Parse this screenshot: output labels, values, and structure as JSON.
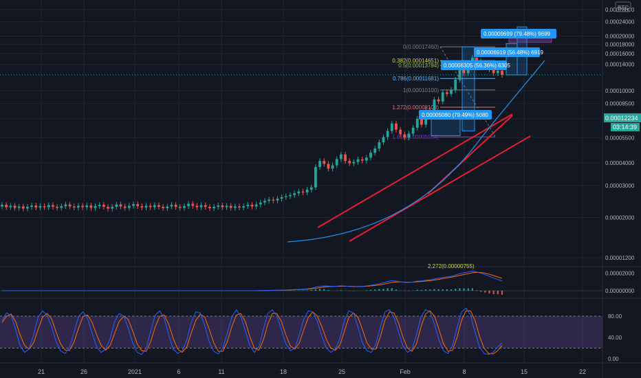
{
  "header": {
    "currency_badge": "BTC",
    "current_price": "0.00012234",
    "countdown": "03:14:39"
  },
  "colors": {
    "background": "#131722",
    "grid": "#1f2430",
    "axis_text": "#b2b5be",
    "up": "#26a69a",
    "down": "#ef5350",
    "trendline": "#e91e30",
    "curve": "#2196f3",
    "macd_line": "#2962ff",
    "signal_line": "#ff6d00",
    "stoch_k": "#2962ff",
    "stoch_d": "#ff6d00",
    "stoch_band": "#7e57c2",
    "label_blue": "#2196f3"
  },
  "chart_data": [
    {
      "type": "candlestick",
      "panel": "price",
      "scale": "log",
      "y_ticks": [
        "0.00028000",
        "0.00024000",
        "0.00020000",
        "0.00018000",
        "0.00016000",
        "0.00014000",
        "0.00010000",
        "0.00008500",
        "0.00007000",
        "0.00005500",
        "0.00004000",
        "0.00003000",
        "0.00002000",
        "0.00001200"
      ],
      "x_ticks": [
        "21",
        "26",
        "2021",
        "6",
        "11",
        "18",
        "25",
        "Feb",
        "8",
        "15",
        "22"
      ],
      "ylim": [
        1.15e-05,
        0.00029
      ],
      "candles": [
        [
          2.3e-05,
          2.35e-05
        ],
        [
          2.35e-05,
          2.28e-05
        ],
        [
          2.28e-05,
          2.32e-05
        ],
        [
          2.32e-05,
          2.26e-05
        ],
        [
          2.26e-05,
          2.3e-05
        ],
        [
          2.3e-05,
          2.24e-05
        ],
        [
          2.24e-05,
          2.29e-05
        ],
        [
          2.29e-05,
          2.33e-05
        ],
        [
          2.33e-05,
          2.27e-05
        ],
        [
          2.27e-05,
          2.31e-05
        ],
        [
          2.31e-05,
          2.28e-05
        ],
        [
          2.28e-05,
          2.34e-05
        ],
        [
          2.34e-05,
          2.29e-05
        ],
        [
          2.29e-05,
          2.26e-05
        ],
        [
          2.26e-05,
          2.31e-05
        ],
        [
          2.31e-05,
          2.36e-05
        ],
        [
          2.36e-05,
          2.3e-05
        ],
        [
          2.3e-05,
          2.27e-05
        ],
        [
          2.27e-05,
          2.32e-05
        ],
        [
          2.32e-05,
          2.28e-05
        ],
        [
          2.28e-05,
          2.33e-05
        ],
        [
          2.33e-05,
          2.26e-05
        ],
        [
          2.26e-05,
          2.31e-05
        ],
        [
          2.31e-05,
          2.35e-05
        ],
        [
          2.35e-05,
          2.29e-05
        ],
        [
          2.29e-05,
          2.24e-05
        ],
        [
          2.24e-05,
          2.29e-05
        ],
        [
          2.29e-05,
          2.36e-05
        ],
        [
          2.36e-05,
          2.3e-05
        ],
        [
          2.3e-05,
          2.26e-05
        ],
        [
          2.26e-05,
          2.32e-05
        ],
        [
          2.32e-05,
          2.37e-05
        ],
        [
          2.37e-05,
          2.31e-05
        ],
        [
          2.31e-05,
          2.27e-05
        ],
        [
          2.27e-05,
          2.32e-05
        ],
        [
          2.32e-05,
          2.28e-05
        ],
        [
          2.28e-05,
          2.34e-05
        ],
        [
          2.34e-05,
          2.29e-05
        ],
        [
          2.29e-05,
          2.25e-05
        ],
        [
          2.25e-05,
          2.3e-05
        ],
        [
          2.3e-05,
          2.35e-05
        ],
        [
          2.35e-05,
          2.29e-05
        ],
        [
          2.29e-05,
          2.26e-05
        ],
        [
          2.26e-05,
          2.31e-05
        ],
        [
          2.31e-05,
          2.38e-05
        ],
        [
          2.38e-05,
          2.32e-05
        ],
        [
          2.32e-05,
          2.28e-05
        ],
        [
          2.28e-05,
          2.34e-05
        ],
        [
          2.34e-05,
          2.29e-05
        ],
        [
          2.29e-05,
          2.25e-05
        ],
        [
          2.25e-05,
          2.29e-05
        ],
        [
          2.29e-05,
          2.33e-05
        ],
        [
          2.33e-05,
          2.28e-05
        ],
        [
          2.28e-05,
          2.32e-05
        ],
        [
          2.32e-05,
          2.26e-05
        ],
        [
          2.26e-05,
          2.3e-05
        ],
        [
          2.3e-05,
          2.27e-05
        ],
        [
          2.27e-05,
          2.31e-05
        ],
        [
          2.31e-05,
          2.35e-05
        ],
        [
          2.35e-05,
          2.3e-05
        ],
        [
          2.3e-05,
          2.36e-05
        ],
        [
          2.36e-05,
          2.42e-05
        ],
        [
          2.42e-05,
          2.47e-05
        ],
        [
          2.47e-05,
          2.51e-05
        ],
        [
          2.51e-05,
          2.48e-05
        ],
        [
          2.48e-05,
          2.54e-05
        ],
        [
          2.54e-05,
          2.59e-05
        ],
        [
          2.59e-05,
          2.62e-05
        ],
        [
          2.62e-05,
          2.66e-05
        ],
        [
          2.66e-05,
          2.72e-05
        ],
        [
          2.72e-05,
          2.78e-05
        ],
        [
          2.78e-05,
          2.75e-05
        ],
        [
          2.75e-05,
          2.85e-05
        ],
        [
          2.85e-05,
          2.93e-05
        ],
        [
          2.93e-05,
          3.8e-05
        ],
        [
          3.8e-05,
          4.1e-05
        ],
        [
          4.1e-05,
          3.95e-05
        ],
        [
          3.95e-05,
          3.72e-05
        ],
        [
          3.72e-05,
          3.88e-05
        ],
        [
          3.88e-05,
          4.2e-05
        ],
        [
          4.2e-05,
          4.45e-05
        ],
        [
          4.45e-05,
          4.1e-05
        ],
        [
          4.1e-05,
          3.98e-05
        ],
        [
          3.98e-05,
          4.05e-05
        ],
        [
          4.05e-05,
          4.18e-05
        ],
        [
          4.18e-05,
          4.12e-05
        ],
        [
          4.12e-05,
          4.28e-05
        ],
        [
          4.28e-05,
          4.55e-05
        ],
        [
          4.55e-05,
          4.8e-05
        ],
        [
          4.8e-05,
          5.2e-05
        ],
        [
          5.2e-05,
          5.55e-05
        ],
        [
          5.55e-05,
          6e-05
        ],
        [
          6e-05,
          6.6e-05
        ],
        [
          6.6e-05,
          6.1e-05
        ],
        [
          6.1e-05,
          5.75e-05
        ],
        [
          5.75e-05,
          5.52e-05
        ],
        [
          5.52e-05,
          5.8e-05
        ],
        [
          5.8e-05,
          6.25e-05
        ],
        [
          6.25e-05,
          7e-05
        ],
        [
          7e-05,
          6.5e-05
        ],
        [
          6.5e-05,
          7.8e-05
        ],
        [
          7.8e-05,
          7.6e-05
        ],
        [
          7.6e-05,
          8.95e-05
        ],
        [
          8.95e-05,
          8.72e-05
        ],
        [
          8.72e-05,
          9.8e-05
        ],
        [
          9.8e-05,
          9.6e-05
        ],
        [
          9.6e-05,
          0.000101
        ],
        [
          0.000101,
          0.000115
        ],
        [
          0.000115,
          0.000132
        ],
        [
          0.000132,
          0.000125
        ],
        [
          0.000125,
          0.000138
        ],
        [
          0.000138,
          0.000152
        ],
        [
          0.000152,
          0.0001455
        ],
        [
          0.0001455,
          0.000135
        ],
        [
          0.000135,
          0.00014
        ],
        [
          0.00014,
          0.000131
        ],
        [
          0.000131,
          0.000125
        ],
        [
          0.000125,
          0.000129
        ],
        [
          0.000129,
          0.0001223
        ]
      ]
    },
    {
      "type": "line",
      "panel": "macd",
      "y_ticks": [
        "0.00002000",
        "0.00000000"
      ],
      "series": [
        {
          "role": "macd",
          "values": [
            0,
            0,
            0,
            0,
            0,
            0,
            0,
            0,
            0,
            0,
            0,
            0,
            0,
            0,
            0,
            0,
            0,
            0,
            0,
            0,
            0,
            0,
            0,
            0,
            0,
            0,
            0,
            0,
            0,
            0,
            0,
            0,
            0,
            0,
            0,
            0,
            0,
            0,
            0,
            0,
            0,
            0,
            0,
            0,
            0,
            0,
            0,
            0,
            0,
            0,
            0,
            0,
            0,
            0,
            0,
            0,
            0,
            0,
            0,
            0,
            0.1,
            0.2,
            0.3,
            0.4,
            0.5,
            0.6,
            0.7,
            0.9,
            1.1,
            1.3,
            1.5,
            1.8,
            2.2,
            2.8,
            4,
            5,
            5.5,
            5.3,
            5,
            5.2,
            5.6,
            5.3,
            4.9,
            4.6,
            4.8,
            5,
            5.5,
            6.2,
            7,
            8,
            9,
            10.5,
            11.5,
            11,
            10.2,
            9.6,
            9.4,
            10,
            11,
            11.2,
            12,
            12.5,
            13.5,
            14.2,
            15,
            15.8,
            16.5,
            18,
            19.5,
            20.5,
            21.5,
            22.5,
            21.5,
            20,
            18.5,
            16.5,
            14.5,
            12.8,
            11
          ]
        },
        {
          "role": "signal",
          "values": [
            0,
            0,
            0,
            0,
            0,
            0,
            0,
            0,
            0,
            0,
            0,
            0,
            0,
            0,
            0,
            0,
            0,
            0,
            0,
            0,
            0,
            0,
            0,
            0,
            0,
            0,
            0,
            0,
            0,
            0,
            0,
            0,
            0,
            0,
            0,
            0,
            0,
            0,
            0,
            0,
            0,
            0,
            0,
            0,
            0,
            0,
            0,
            0,
            0,
            0,
            0,
            0,
            0,
            0,
            0,
            0,
            0,
            0,
            0,
            0,
            0,
            0.1,
            0.2,
            0.3,
            0.4,
            0.5,
            0.6,
            0.7,
            0.9,
            1.1,
            1.3,
            1.5,
            1.8,
            2.2,
            2.8,
            3.5,
            4.2,
            4.7,
            4.9,
            5,
            5.1,
            5.2,
            5.1,
            4.9,
            4.8,
            4.9,
            5.1,
            5.5,
            6,
            6.7,
            7.5,
            8.5,
            9.5,
            10,
            10,
            9.8,
            9.7,
            9.8,
            10.2,
            10.6,
            11,
            11.5,
            12.2,
            13,
            13.8,
            14.6,
            15.4,
            16.4,
            17.5,
            18.6,
            19.6,
            20.5,
            21,
            20.8,
            20,
            18.8,
            17.3,
            15.7,
            14.2
          ]
        }
      ],
      "zero_line": 0
    },
    {
      "type": "line",
      "panel": "stochastic_rsi",
      "y_ticks": [
        "80.00",
        "40.00",
        "0.00"
      ],
      "ylim": [
        0,
        100
      ],
      "band": [
        20,
        80
      ],
      "series": [
        {
          "role": "k",
          "values": [
            72,
            86,
            82,
            55,
            25,
            12,
            18,
            45,
            78,
            90,
            82,
            60,
            32,
            15,
            10,
            22,
            50,
            80,
            88,
            75,
            48,
            22,
            12,
            18,
            38,
            70,
            85,
            80,
            58,
            30,
            12,
            8,
            20,
            52,
            82,
            90,
            76,
            45,
            18,
            10,
            15,
            35,
            68,
            88,
            86,
            62,
            32,
            14,
            9,
            20,
            48,
            78,
            92,
            80,
            52,
            25,
            12,
            22,
            55,
            85,
            92,
            80,
            55,
            28,
            15,
            20,
            45,
            75,
            90,
            88,
            70,
            42,
            20,
            12,
            18,
            38,
            72,
            90,
            86,
            60,
            30,
            15,
            12,
            28,
            60,
            88,
            92,
            78,
            50,
            24,
            12,
            18,
            45,
            78,
            92,
            88,
            65,
            35,
            15,
            10,
            25,
            58,
            88,
            95,
            82,
            50,
            22,
            10,
            8,
            12,
            22,
            30
          ]
        },
        {
          "role": "d",
          "values": [
            68,
            80,
            84,
            70,
            45,
            25,
            18,
            30,
            55,
            78,
            85,
            75,
            50,
            28,
            16,
            16,
            32,
            58,
            80,
            82,
            68,
            45,
            25,
            16,
            25,
            48,
            70,
            80,
            74,
            52,
            28,
            15,
            14,
            32,
            60,
            80,
            82,
            65,
            38,
            18,
            12,
            22,
            48,
            72,
            84,
            78,
            55,
            30,
            14,
            14,
            32,
            60,
            82,
            85,
            70,
            42,
            20,
            16,
            35,
            65,
            85,
            85,
            70,
            45,
            24,
            18,
            30,
            55,
            78,
            88,
            80,
            60,
            36,
            20,
            16,
            26,
            52,
            78,
            86,
            78,
            55,
            30,
            18,
            18,
            42,
            72,
            88,
            86,
            68,
            40,
            20,
            14,
            28,
            60,
            84,
            90,
            80,
            55,
            28,
            14,
            16,
            40,
            72,
            90,
            90,
            72,
            42,
            20,
            10,
            9,
            15,
            25
          ]
        }
      ]
    }
  ],
  "annotations": {
    "fib_levels": [
      {
        "label": "0(0.00017460)",
        "color": "#787b86"
      },
      {
        "label": "0.382(0.00014651)",
        "color": "#cddc39"
      },
      {
        "label": "0.5(0.00013784)",
        "color": "#8bc34a"
      },
      {
        "label": "0.786(0.00011681)",
        "color": "#64b5f6"
      },
      {
        "label": "1(0.00010100)",
        "color": "#787b86"
      },
      {
        "label": "1.272(0.00008108)",
        "color": "#e57373"
      },
      {
        "label": "1.618(0.00005564)",
        "color": "#673ab7"
      },
      {
        "label": "2.272(0.00000755)",
        "color": "#cddc39"
      }
    ],
    "measure_labels": [
      {
        "text": "0.00009699 (79.48%) 9699"
      },
      {
        "text": "0.00006919 (56.48%) 6919"
      },
      {
        "text": "0.00006305 (56.36%) 6305"
      },
      {
        "text": "0.00005080 (79.49%) 5080"
      }
    ]
  }
}
